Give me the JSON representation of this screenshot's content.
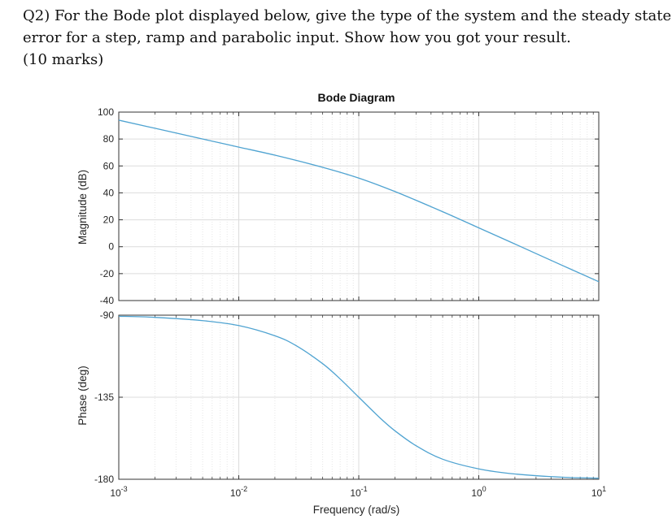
{
  "question": {
    "line1": "Q2) For the Bode plot displayed below, give the type of the system and the steady state",
    "line2": "error for a step, ramp and parabolic input. Show how you got your result.",
    "line3": "(10 marks)"
  },
  "chart_data": {
    "type": "line",
    "title": "Bode Diagram",
    "xlabel": "Frequency (rad/s)",
    "x_scale": "log",
    "xlim": [
      0.001,
      10
    ],
    "x_ticks": [
      {
        "value": 0.001,
        "base": "10",
        "exp": "-3"
      },
      {
        "value": 0.01,
        "base": "10",
        "exp": "-2"
      },
      {
        "value": 0.1,
        "base": "10",
        "exp": "-1"
      },
      {
        "value": 1,
        "base": "10",
        "exp": "0"
      },
      {
        "value": 10,
        "base": "10",
        "exp": "1"
      }
    ],
    "grid": true,
    "line_color": "#4fa3d1",
    "magnitude": {
      "ylabel": "Magnitude (dB)",
      "ylim": [
        -40,
        100
      ],
      "y_ticks": [
        100,
        80,
        60,
        40,
        20,
        0,
        -20,
        -40
      ],
      "x": [
        0.001,
        0.002,
        0.005,
        0.01,
        0.02,
        0.05,
        0.1,
        0.2,
        0.5,
        1,
        2,
        5,
        10
      ],
      "y": [
        94,
        88,
        80,
        74,
        68,
        59,
        51,
        41,
        26,
        14,
        2,
        -14,
        -26
      ]
    },
    "phase": {
      "ylabel": "Phase (deg)",
      "ylim": [
        -180,
        -90
      ],
      "y_ticks": [
        -90,
        -135,
        -180
      ],
      "x": [
        0.001,
        0.002,
        0.005,
        0.01,
        0.02,
        0.03,
        0.05,
        0.07,
        0.1,
        0.15,
        0.2,
        0.3,
        0.5,
        1,
        2,
        5,
        10
      ],
      "y": [
        -90.6,
        -91.2,
        -93,
        -95.7,
        -101.3,
        -106.7,
        -116.6,
        -125,
        -135,
        -146.3,
        -153.4,
        -161.6,
        -169,
        -174.3,
        -177.1,
        -178.9,
        -179.4
      ]
    }
  }
}
